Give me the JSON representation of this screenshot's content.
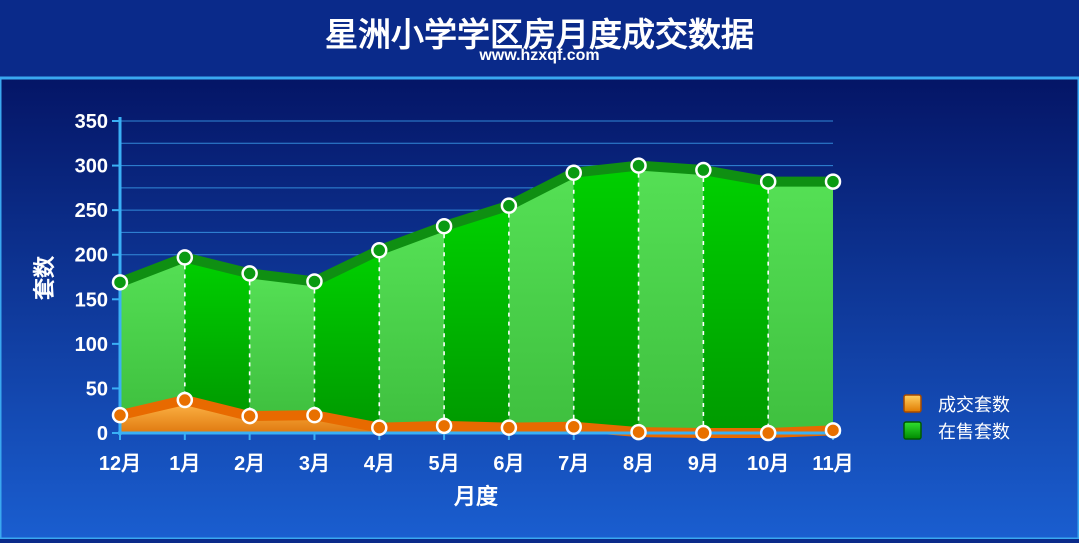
{
  "title": "星洲小学学区房月度成交数据",
  "subtitle": "www.hzxqf.com",
  "colors": {
    "background": "#0a2a8a",
    "panel_top": "#041566",
    "panel_bottom": "#1a5ed0",
    "frame": "#3aa8f0",
    "grid": "#2f8cd8",
    "sold_line": "#e86a00",
    "sold_fill": "#f0a030",
    "onsale_line": "#0a8a10",
    "onsale_fill_dark": "#08b010",
    "onsale_fill_light": "#4cd84c"
  },
  "chart_data": {
    "type": "area",
    "title": "星洲小学学区房月度成交数据",
    "xlabel": "月度",
    "ylabel": "套数",
    "categories": [
      "12月",
      "1月",
      "2月",
      "3月",
      "4月",
      "5月",
      "6月",
      "7月",
      "8月",
      "9月",
      "10月",
      "11月"
    ],
    "ylim": [
      0,
      350
    ],
    "yticks": [
      0,
      50,
      100,
      150,
      200,
      250,
      300,
      350
    ],
    "grid": true,
    "legend_position": "right",
    "series": [
      {
        "name": "成交套数",
        "color": "#e87a00",
        "values": [
          20,
          37,
          19,
          20,
          6,
          8,
          6,
          7,
          1,
          0,
          0,
          3
        ]
      },
      {
        "name": "在售套数",
        "color": "#10a010",
        "values": [
          169,
          197,
          179,
          170,
          205,
          232,
          255,
          292,
          300,
          295,
          282,
          282
        ]
      }
    ]
  }
}
